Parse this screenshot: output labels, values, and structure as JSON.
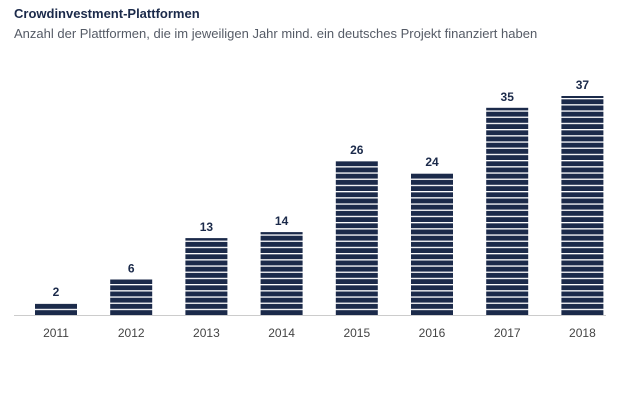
{
  "chart_data": {
    "type": "bar",
    "title": "Crowdinvestment-Plattformen",
    "subtitle": "Anzahl der Plattformen, die im jeweiligen Jahr mind. ein deutsches Projekt finanziert haben",
    "categories": [
      "2011",
      "2012",
      "2013",
      "2014",
      "2015",
      "2016",
      "2017",
      "2018"
    ],
    "values": [
      2,
      6,
      13,
      14,
      26,
      24,
      35,
      37
    ],
    "data_labels": [
      "2",
      "6",
      "13",
      "14",
      "26",
      "24",
      "35",
      "37"
    ],
    "xlabel": "",
    "ylabel": "",
    "ylim": [
      0,
      37
    ],
    "grid": false,
    "legend": "none",
    "bar_style": "horizontally striped",
    "colors": {
      "bar": "#1b2a4a",
      "stripe": "#ffffff",
      "text": "#1b2a4a",
      "subtitle": "#555b66",
      "tick": "#444444",
      "baseline": "#cccccc"
    }
  }
}
